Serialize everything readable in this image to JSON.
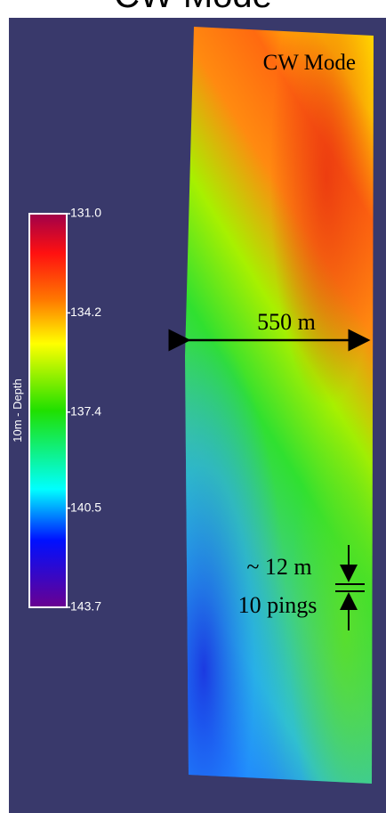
{
  "title": "CW Mode",
  "colorbar": {
    "label": "10m - Depth",
    "range": [
      131,
      143.7
    ],
    "ticks": [
      {
        "value": 131,
        "label": "131.0"
      },
      134.2,
      137.4,
      140.5,
      143.7
    ]
  },
  "annotations": {
    "mode": "CW Mode",
    "width": "550 m",
    "spacing": "~ 12 m",
    "pings": "10 pings"
  }
}
